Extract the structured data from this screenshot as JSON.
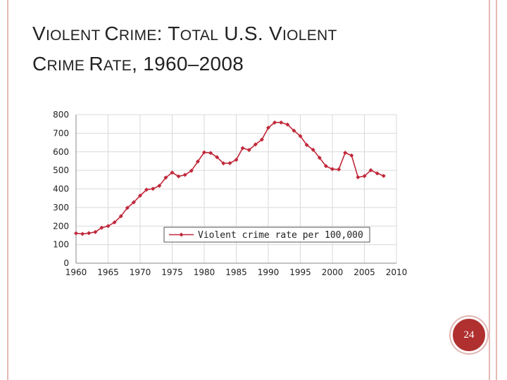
{
  "slide": {
    "title_line1_parts": [
      "V",
      "IOLENT ",
      "C",
      "RIME",
      ": ",
      "T",
      "OTAL",
      " U.S. ",
      "V",
      "IOLENT"
    ],
    "title_line2_parts": [
      "C",
      "RIME ",
      "R",
      "ATE",
      ", 1960–2008"
    ],
    "page_number": "24",
    "accent_color": "#b03030",
    "border_color": "#e7b9b5"
  },
  "chart_data": {
    "type": "line",
    "title": "",
    "xlabel": "",
    "ylabel": "",
    "xlim": [
      1960,
      2010
    ],
    "ylim": [
      0,
      800
    ],
    "xticks": [
      1960,
      1965,
      1970,
      1975,
      1980,
      1985,
      1990,
      1995,
      2000,
      2005,
      2010
    ],
    "yticks": [
      0,
      100,
      200,
      300,
      400,
      500,
      600,
      700,
      800
    ],
    "grid": true,
    "legend_position": "bottom-center",
    "series": [
      {
        "name": "Violent crime rate per 100,000",
        "color": "#c0283a",
        "marker": "diamond",
        "x": [
          1960,
          1961,
          1962,
          1963,
          1964,
          1965,
          1966,
          1967,
          1968,
          1969,
          1970,
          1971,
          1972,
          1973,
          1974,
          1975,
          1976,
          1977,
          1978,
          1979,
          1980,
          1981,
          1982,
          1983,
          1984,
          1985,
          1986,
          1987,
          1988,
          1989,
          1990,
          1991,
          1992,
          1993,
          1994,
          1995,
          1996,
          1997,
          1998,
          1999,
          2000,
          2001,
          2002,
          2003,
          2004,
          2005,
          2006,
          2007,
          2008
        ],
        "values": [
          161,
          158,
          162,
          168,
          191,
          200,
          220,
          253,
          298,
          328,
          364,
          396,
          401,
          417,
          461,
          488,
          468,
          476,
          498,
          548,
          597,
          594,
          571,
          538,
          539,
          557,
          620,
          610,
          640,
          666,
          730,
          758,
          758,
          747,
          714,
          685,
          637,
          611,
          568,
          523,
          507,
          505,
          595,
          580,
          463,
          469,
          501,
          484,
          470
        ]
      }
    ]
  }
}
